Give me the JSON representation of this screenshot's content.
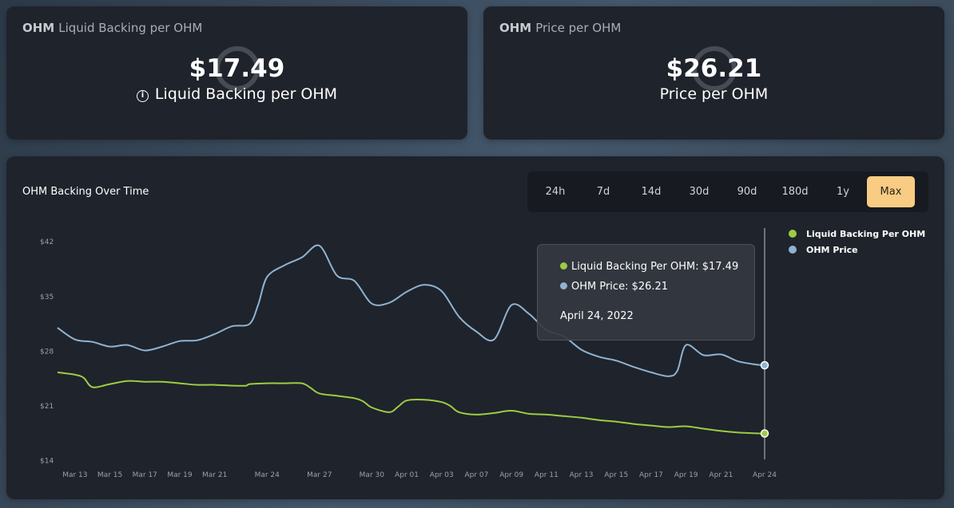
{
  "cards": {
    "backing": {
      "title_bold": "OHM",
      "title_rest": "Liquid Backing per OHM",
      "value": "$17.49",
      "sub": "Liquid Backing per OHM"
    },
    "price": {
      "title_bold": "OHM",
      "title_rest": "Price per OHM",
      "value": "$26.21",
      "sub": "Price per OHM"
    }
  },
  "chart_panel": {
    "title": "OHM Backing Over Time",
    "ranges": [
      "24h",
      "7d",
      "14d",
      "30d",
      "90d",
      "180d",
      "1y",
      "Max"
    ],
    "active_range": "Max",
    "tooltip": {
      "backing_line": "Liquid Backing Per OHM: $17.49",
      "price_line": "OHM Price: $26.21",
      "date": "April 24, 2022"
    }
  },
  "colors": {
    "backing": "#9ccc45",
    "price": "#8fb3d1",
    "accent": "#f8cc82"
  },
  "icons": [
    "info-icon",
    "loading-spinner-icon"
  ],
  "chart_data": {
    "type": "line",
    "title": "OHM Backing Over Time",
    "xlabel": "",
    "ylabel": "",
    "ylim": [
      10.5,
      46
    ],
    "yticks": [
      14,
      21,
      28,
      35,
      42
    ],
    "ytick_labels": [
      "$14",
      "$21",
      "$28",
      "$35",
      "$42"
    ],
    "xlim": [
      0,
      44
    ],
    "x_ticks": [
      {
        "x": 1,
        "label": "Mar 13"
      },
      {
        "x": 3,
        "label": "Mar 15"
      },
      {
        "x": 5,
        "label": "Mar 17"
      },
      {
        "x": 7,
        "label": "Mar 19"
      },
      {
        "x": 9,
        "label": "Mar 21"
      },
      {
        "x": 12,
        "label": "Mar 24"
      },
      {
        "x": 15,
        "label": "Mar 27"
      },
      {
        "x": 18,
        "label": "Mar 30"
      },
      {
        "x": 20,
        "label": "Apr 01"
      },
      {
        "x": 22,
        "label": "Apr 03"
      },
      {
        "x": 24,
        "label": "Apr 07"
      },
      {
        "x": 26,
        "label": "Apr 09"
      },
      {
        "x": 28,
        "label": "Apr 11"
      },
      {
        "x": 30,
        "label": "Apr 13"
      },
      {
        "x": 32,
        "label": "Apr 15"
      },
      {
        "x": 34,
        "label": "Apr 17"
      },
      {
        "x": 36,
        "label": "Apr 19"
      },
      {
        "x": 38,
        "label": "Apr 21"
      },
      {
        "x": 40.5,
        "label": "Apr 24"
      }
    ],
    "legend_position": "right",
    "grid": false,
    "series": [
      {
        "name": "Liquid Backing Per OHM",
        "color": "#9ccc45",
        "points": [
          [
            0,
            25.3
          ],
          [
            1,
            25.0
          ],
          [
            1.5,
            24.6
          ],
          [
            2,
            23.4
          ],
          [
            3,
            23.8
          ],
          [
            4,
            24.2
          ],
          [
            5,
            24.1
          ],
          [
            6,
            24.1
          ],
          [
            7,
            23.9
          ],
          [
            8,
            23.7
          ],
          [
            9,
            23.7
          ],
          [
            10,
            23.6
          ],
          [
            10.8,
            23.6
          ],
          [
            11,
            23.8
          ],
          [
            12,
            23.9
          ],
          [
            13,
            23.9
          ],
          [
            14,
            23.9
          ],
          [
            14.5,
            23.3
          ],
          [
            15,
            22.6
          ],
          [
            16,
            22.3
          ],
          [
            17,
            22.0
          ],
          [
            17.5,
            21.6
          ],
          [
            18,
            20.8
          ],
          [
            19,
            20.2
          ],
          [
            19.5,
            20.9
          ],
          [
            20,
            21.7
          ],
          [
            21,
            21.8
          ],
          [
            22,
            21.5
          ],
          [
            22.5,
            21.0
          ],
          [
            23,
            20.2
          ],
          [
            24,
            19.9
          ],
          [
            25,
            20.1
          ],
          [
            26,
            20.4
          ],
          [
            27,
            20.0
          ],
          [
            28,
            19.9
          ],
          [
            29,
            19.7
          ],
          [
            30,
            19.5
          ],
          [
            31,
            19.2
          ],
          [
            32,
            19.0
          ],
          [
            33,
            18.7
          ],
          [
            34,
            18.5
          ],
          [
            35,
            18.3
          ],
          [
            36,
            18.4
          ],
          [
            37,
            18.1
          ],
          [
            38,
            17.8
          ],
          [
            39,
            17.6
          ],
          [
            40,
            17.5
          ],
          [
            40.5,
            17.49
          ]
        ]
      },
      {
        "name": "OHM Price",
        "color": "#8fb3d1",
        "points": [
          [
            0,
            31.0
          ],
          [
            1,
            29.5
          ],
          [
            2,
            29.2
          ],
          [
            3,
            28.6
          ],
          [
            4,
            28.8
          ],
          [
            5,
            28.1
          ],
          [
            6,
            28.6
          ],
          [
            7,
            29.3
          ],
          [
            8,
            29.4
          ],
          [
            9,
            30.2
          ],
          [
            10,
            31.2
          ],
          [
            11,
            31.5
          ],
          [
            11.5,
            34.0
          ],
          [
            12,
            37.5
          ],
          [
            13,
            39.0
          ],
          [
            14,
            40.0
          ],
          [
            15,
            41.5
          ],
          [
            16,
            37.7
          ],
          [
            17,
            37.0
          ],
          [
            18,
            34.1
          ],
          [
            19,
            34.2
          ],
          [
            20,
            35.6
          ],
          [
            21,
            36.5
          ],
          [
            22,
            35.7
          ],
          [
            23,
            32.4
          ],
          [
            24,
            30.5
          ],
          [
            25,
            29.5
          ],
          [
            26,
            33.9
          ],
          [
            27,
            32.8
          ],
          [
            28,
            30.7
          ],
          [
            29,
            29.9
          ],
          [
            30,
            28.2
          ],
          [
            31,
            27.3
          ],
          [
            32,
            26.8
          ],
          [
            33,
            26.0
          ],
          [
            34,
            25.3
          ],
          [
            35,
            24.8
          ],
          [
            35.5,
            25.5
          ],
          [
            36,
            28.8
          ],
          [
            37,
            27.5
          ],
          [
            38,
            27.6
          ],
          [
            39,
            26.7
          ],
          [
            40,
            26.3
          ],
          [
            40.5,
            26.21
          ]
        ]
      }
    ],
    "highlight": {
      "x": 40.5,
      "date": "April 24, 2022",
      "values": {
        "Liquid Backing Per OHM": 17.49,
        "OHM Price": 26.21
      }
    }
  }
}
